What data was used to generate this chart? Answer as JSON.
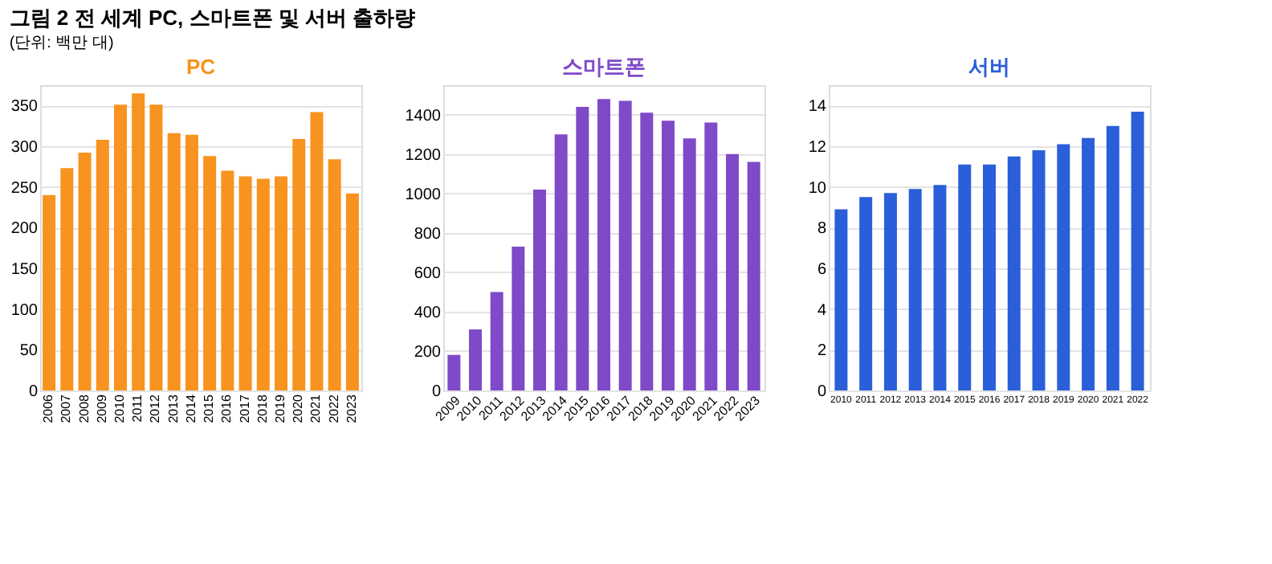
{
  "chart_data": [
    {
      "type": "bar",
      "title": "PC",
      "annotations": [
        "그림 2",
        "전 세계 PC, 스마트폰 및 서버 출하량",
        "(단위: 백만 대)"
      ],
      "categories": [
        "2006",
        "2007",
        "2008",
        "2009",
        "2010",
        "2011",
        "2012",
        "2013",
        "2014",
        "2015",
        "2016",
        "2017",
        "2018",
        "2019",
        "2020",
        "2021",
        "2022",
        "2023"
      ],
      "values": [
        240,
        273,
        292,
        308,
        351,
        365,
        351,
        316,
        314,
        288,
        270,
        263,
        260,
        263,
        309,
        342,
        284,
        242
      ],
      "color": "#f7931e",
      "ylim": [
        0,
        375
      ],
      "yticks": [
        0,
        50,
        100,
        150,
        200,
        250,
        300,
        350
      ],
      "grid": "y"
    },
    {
      "type": "bar",
      "title": "스마트폰",
      "categories": [
        "2009",
        "2010",
        "2011",
        "2012",
        "2013",
        "2014",
        "2015",
        "2016",
        "2017",
        "2018",
        "2019",
        "2020",
        "2021",
        "2022",
        "2023"
      ],
      "values": [
        180,
        310,
        500,
        730,
        1020,
        1300,
        1440,
        1480,
        1470,
        1410,
        1370,
        1280,
        1360,
        1200,
        1160
      ],
      "color": "#7f4ac8",
      "ylim": [
        0,
        1550
      ],
      "yticks": [
        0,
        200,
        400,
        600,
        800,
        1000,
        1200,
        1400
      ],
      "grid": "y"
    },
    {
      "type": "bar",
      "title": "서버",
      "categories": [
        "2010",
        "2011",
        "2012",
        "2013",
        "2014",
        "2015",
        "2016",
        "2017",
        "2018",
        "2019",
        "2020",
        "2021",
        "2022"
      ],
      "values": [
        8.9,
        9.5,
        9.7,
        9.9,
        10.1,
        11.1,
        11.1,
        11.5,
        11.8,
        12.1,
        12.4,
        13.0,
        13.7
      ],
      "color": "#2b5fd9",
      "ylim": [
        0,
        15
      ],
      "yticks": [
        0,
        2,
        4,
        6,
        8,
        10,
        12,
        14
      ],
      "grid": "y"
    }
  ]
}
